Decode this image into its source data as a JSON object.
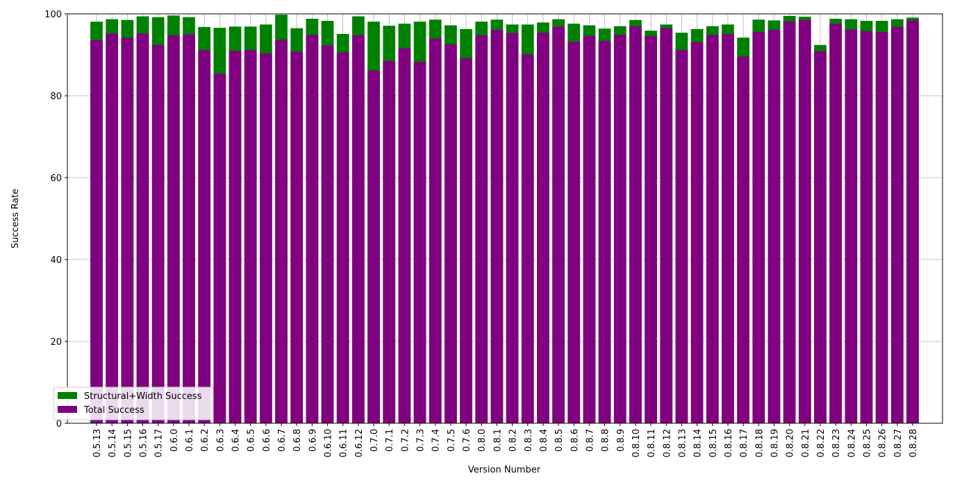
{
  "chart_data": {
    "type": "bar",
    "xlabel": "Version Number",
    "ylabel": "Success Rate",
    "categories": [
      "0.5.13",
      "0.5.14",
      "0.5.15",
      "0.5.16",
      "0.5.17",
      "0.6.0",
      "0.6.1",
      "0.6.2",
      "0.6.3",
      "0.6.4",
      "0.6.5",
      "0.6.6",
      "0.6.7",
      "0.6.8",
      "0.6.9",
      "0.6.10",
      "0.6.11",
      "0.6.12",
      "0.7.0",
      "0.7.1",
      "0.7.2",
      "0.7.3",
      "0.7.4",
      "0.7.5",
      "0.7.6",
      "0.8.0",
      "0.8.1",
      "0.8.2",
      "0.8.3",
      "0.8.4",
      "0.8.5",
      "0.8.6",
      "0.8.7",
      "0.8.8",
      "0.8.9",
      "0.8.10",
      "0.8.11",
      "0.8.12",
      "0.8.13",
      "0.8.14",
      "0.8.15",
      "0.8.16",
      "0.8.17",
      "0.8.18",
      "0.8.19",
      "0.8.20",
      "0.8.21",
      "0.8.22",
      "0.8.23",
      "0.8.24",
      "0.8.25",
      "0.8.26",
      "0.8.27",
      "0.8.28"
    ],
    "series": [
      {
        "name": "Structural+Width Success",
        "color": "green",
        "values": [
          98.1,
          98.7,
          98.5,
          99.4,
          99.2,
          99.6,
          99.2,
          96.8,
          96.6,
          96.9,
          96.9,
          97.4,
          99.8,
          96.5,
          98.8,
          98.3,
          95.1,
          99.4,
          98.1,
          97.1,
          97.6,
          98.1,
          98.6,
          97.2,
          96.3,
          98.1,
          98.6,
          97.4,
          97.4,
          97.9,
          98.7,
          97.6,
          97.2,
          96.4,
          97.0,
          98.5,
          95.9,
          97.4,
          95.4,
          96.3,
          97.0,
          97.4,
          94.2,
          98.6,
          98.4,
          99.5,
          99.3,
          92.4,
          98.8,
          98.7,
          98.3,
          98.3,
          98.7,
          99.1
        ]
      },
      {
        "name": "Total Success",
        "color": "purple",
        "values": [
          93.6,
          95.2,
          94.2,
          95.2,
          92.4,
          94.8,
          95.0,
          91.2,
          85.4,
          91.0,
          91.2,
          90.4,
          93.7,
          90.8,
          94.9,
          92.3,
          90.6,
          94.8,
          86.2,
          88.5,
          91.6,
          88.3,
          94.0,
          92.6,
          89.2,
          94.8,
          96.1,
          95.3,
          90.1,
          95.4,
          96.9,
          93.2,
          94.6,
          93.4,
          94.9,
          97.0,
          94.6,
          96.5,
          91.2,
          93.1,
          94.9,
          95.1,
          89.6,
          95.6,
          96.1,
          98.2,
          98.5,
          90.9,
          97.6,
          96.2,
          95.8,
          95.6,
          96.9,
          98.4
        ]
      }
    ],
    "ylim": [
      0,
      100
    ],
    "yticks": [
      0,
      20,
      40,
      60,
      80,
      100
    ],
    "grid": true,
    "legend": "lower left"
  }
}
